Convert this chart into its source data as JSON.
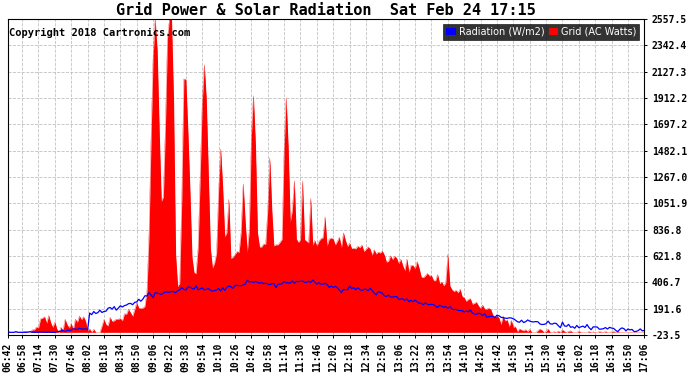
{
  "title": "Grid Power & Solar Radiation  Sat Feb 24 17:15",
  "copyright": "Copyright 2018 Cartronics.com",
  "background_color": "#ffffff",
  "plot_bg_color": "#ffffff",
  "grid_color": "#bbbbbb",
  "yticks": [
    2557.5,
    2342.4,
    2127.3,
    1912.2,
    1697.2,
    1482.1,
    1267.0,
    1051.9,
    836.8,
    621.8,
    406.7,
    191.6,
    -23.5
  ],
  "ymin": -23.5,
  "ymax": 2557.5,
  "radiation_color": "#0000ff",
  "grid_fill_color": "#ff0000",
  "title_fontsize": 11,
  "tick_fontsize": 7,
  "copyright_fontsize": 7.5,
  "time_labels": [
    "06:42",
    "06:58",
    "07:14",
    "07:30",
    "07:46",
    "08:02",
    "08:18",
    "08:34",
    "08:50",
    "09:06",
    "09:22",
    "09:38",
    "09:54",
    "10:10",
    "10:26",
    "10:42",
    "10:58",
    "11:14",
    "11:30",
    "11:46",
    "12:02",
    "12:18",
    "12:34",
    "12:50",
    "13:06",
    "13:22",
    "13:38",
    "13:54",
    "14:10",
    "14:26",
    "14:42",
    "14:58",
    "15:14",
    "15:30",
    "15:46",
    "16:02",
    "16:18",
    "16:34",
    "16:50",
    "17:06"
  ]
}
